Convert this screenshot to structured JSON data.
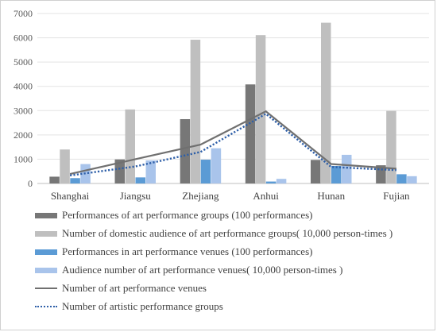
{
  "chart_data": {
    "type": "bar",
    "categories": [
      "Shanghai",
      "Jiangsu",
      "Zhejiang",
      "Anhui",
      "Hunan",
      "Fujian"
    ],
    "ylim": [
      0,
      7000
    ],
    "yticks": [
      0,
      1000,
      2000,
      3000,
      4000,
      5000,
      6000,
      7000
    ],
    "grid": true,
    "legend_position": "bottom",
    "series": [
      {
        "name": "Performances of art performance groups (100 performances)",
        "kind": "bar",
        "color": "#777777",
        "values": [
          280,
          990,
          2650,
          4080,
          970,
          750
        ]
      },
      {
        "name": "Number of domestic audience of art performance groups( 10,000 person-times )",
        "kind": "bar",
        "color": "#bfbfbf",
        "values": [
          1400,
          3050,
          5920,
          6110,
          6620,
          2990
        ]
      },
      {
        "name": "Performances in art performance venues (100 performances)",
        "kind": "bar",
        "color": "#5b9bd5",
        "values": [
          220,
          250,
          980,
          80,
          720,
          380
        ]
      },
      {
        "name": "Audience number of art performance venues( 10,000 person-times )",
        "kind": "bar",
        "color": "#a9c4eb",
        "values": [
          800,
          950,
          1450,
          190,
          1180,
          300
        ]
      },
      {
        "name": "Number of art performance venues",
        "kind": "line",
        "color": "#707070",
        "values": [
          390,
          1000,
          1600,
          2970,
          800,
          610
        ]
      },
      {
        "name": "Number of artistic performance  groups",
        "kind": "dotted-line",
        "color": "#2e5fa8",
        "values": [
          330,
          700,
          1300,
          2870,
          680,
          550
        ]
      }
    ]
  }
}
